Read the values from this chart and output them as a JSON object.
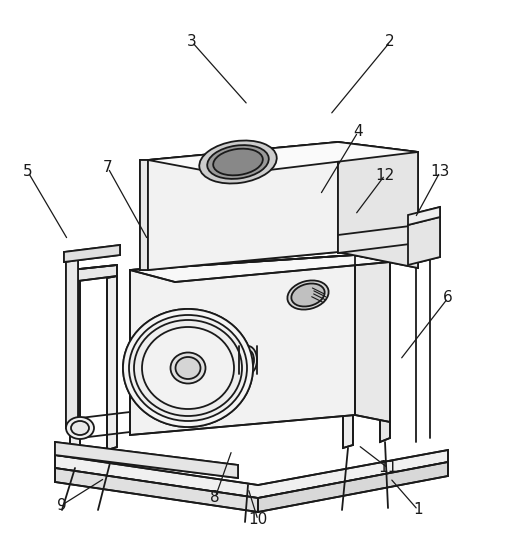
{
  "background_color": "#ffffff",
  "line_color": "#1a1a1a",
  "line_width": 1.3,
  "label_fontsize": 11,
  "labels_info": [
    [
      1,
      418,
      510,
      390,
      478
    ],
    [
      2,
      390,
      42,
      330,
      115
    ],
    [
      3,
      192,
      42,
      248,
      105
    ],
    [
      4,
      358,
      132,
      320,
      195
    ],
    [
      5,
      28,
      172,
      68,
      240
    ],
    [
      6,
      448,
      298,
      400,
      360
    ],
    [
      7,
      108,
      168,
      148,
      240
    ],
    [
      8,
      215,
      498,
      232,
      450
    ],
    [
      9,
      62,
      505,
      105,
      478
    ],
    [
      10,
      258,
      520,
      248,
      488
    ],
    [
      11,
      388,
      468,
      358,
      445
    ],
    [
      12,
      385,
      175,
      355,
      215
    ],
    [
      13,
      440,
      172,
      415,
      218
    ]
  ]
}
